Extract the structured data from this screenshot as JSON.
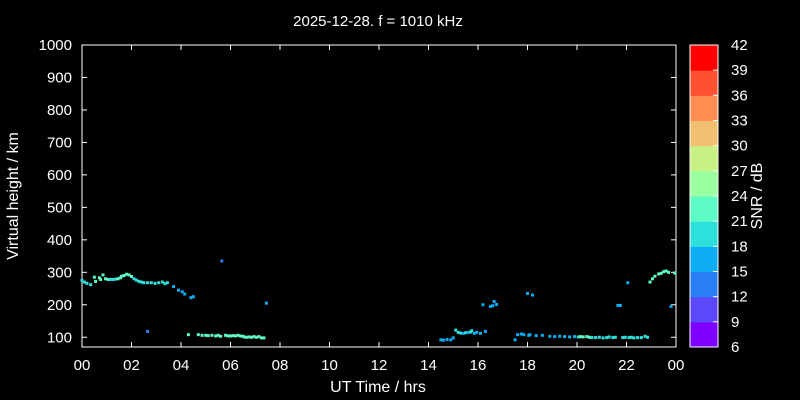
{
  "chart_data": {
    "type": "scatter",
    "title": "2025-12-28. f = 1010 kHz",
    "xlabel": "UT Time / hrs",
    "ylabel": "Virtual height / km",
    "xlim": [
      0,
      24
    ],
    "ylim": [
      70,
      1000
    ],
    "xticks": [
      "00",
      "02",
      "04",
      "06",
      "08",
      "10",
      "12",
      "14",
      "16",
      "18",
      "20",
      "22",
      "00"
    ],
    "yticks": [
      100,
      200,
      300,
      400,
      500,
      600,
      700,
      800,
      900,
      1000
    ],
    "grid": false,
    "colorbar": {
      "label": "SNR / dB",
      "ticks": [
        "6",
        "9",
        "12",
        "15",
        "18",
        "21",
        "24",
        "27",
        "30",
        "33",
        "36",
        "39",
        "42"
      ],
      "colors": [
        "#7f00ff",
        "#5a48f9",
        "#2c7ef6",
        "#0dadf2",
        "#2ee0dc",
        "#5efcc4",
        "#99ffa0",
        "#c8f082",
        "#f0c070",
        "#ff8c50",
        "#ff5030",
        "#ff0000"
      ]
    },
    "points": [
      [
        0.0,
        275,
        20
      ],
      [
        0.1,
        270,
        20
      ],
      [
        0.2,
        266,
        19
      ],
      [
        0.35,
        262,
        18
      ],
      [
        0.5,
        285,
        22
      ],
      [
        0.55,
        272,
        21
      ],
      [
        0.7,
        283,
        22
      ],
      [
        0.75,
        278,
        21
      ],
      [
        0.85,
        292,
        23
      ],
      [
        0.95,
        280,
        21
      ],
      [
        1.05,
        278,
        21
      ],
      [
        1.15,
        278,
        20
      ],
      [
        1.25,
        278,
        20
      ],
      [
        1.35,
        279,
        20
      ],
      [
        1.45,
        280,
        21
      ],
      [
        1.55,
        283,
        21
      ],
      [
        1.6,
        288,
        22
      ],
      [
        1.7,
        290,
        22
      ],
      [
        1.8,
        294,
        23
      ],
      [
        1.9,
        292,
        22
      ],
      [
        2.0,
        287,
        21
      ],
      [
        2.1,
        280,
        20
      ],
      [
        2.2,
        276,
        20
      ],
      [
        2.3,
        272,
        19
      ],
      [
        2.4,
        270,
        19
      ],
      [
        2.5,
        268,
        19
      ],
      [
        2.65,
        268,
        19
      ],
      [
        2.65,
        118,
        12
      ],
      [
        2.8,
        268,
        19
      ],
      [
        2.95,
        266,
        19
      ],
      [
        3.1,
        268,
        19
      ],
      [
        3.25,
        270,
        19
      ],
      [
        3.35,
        265,
        19
      ],
      [
        3.45,
        268,
        19
      ],
      [
        3.7,
        256,
        17
      ],
      [
        3.9,
        245,
        16
      ],
      [
        4.05,
        240,
        16
      ],
      [
        4.15,
        233,
        16
      ],
      [
        4.4,
        222,
        15
      ],
      [
        4.5,
        225,
        15
      ],
      [
        4.3,
        108,
        22
      ],
      [
        4.7,
        108,
        22
      ],
      [
        4.85,
        106,
        22
      ],
      [
        5.0,
        106,
        22
      ],
      [
        5.1,
        105,
        22
      ],
      [
        5.25,
        106,
        22
      ],
      [
        5.4,
        104,
        21
      ],
      [
        5.5,
        106,
        22
      ],
      [
        5.6,
        103,
        22
      ],
      [
        5.65,
        335,
        13
      ],
      [
        5.8,
        106,
        22
      ],
      [
        5.9,
        104,
        22
      ],
      [
        6.0,
        104,
        22
      ],
      [
        6.1,
        105,
        22
      ],
      [
        6.2,
        104,
        22
      ],
      [
        6.3,
        106,
        22
      ],
      [
        6.4,
        104,
        22
      ],
      [
        6.5,
        103,
        22
      ],
      [
        6.55,
        101,
        22
      ],
      [
        6.65,
        100,
        22
      ],
      [
        6.75,
        101,
        22
      ],
      [
        6.85,
        100,
        22
      ],
      [
        6.95,
        102,
        22
      ],
      [
        7.05,
        100,
        22
      ],
      [
        7.15,
        102,
        22
      ],
      [
        7.25,
        98,
        22
      ],
      [
        7.35,
        98,
        21
      ],
      [
        7.45,
        205,
        15
      ],
      [
        14.5,
        92,
        16
      ],
      [
        14.6,
        91,
        16
      ],
      [
        14.75,
        93,
        16
      ],
      [
        14.9,
        92,
        16
      ],
      [
        15.0,
        98,
        16
      ],
      [
        15.1,
        122,
        18
      ],
      [
        15.2,
        115,
        18
      ],
      [
        15.3,
        113,
        18
      ],
      [
        15.4,
        112,
        17
      ],
      [
        15.5,
        114,
        18
      ],
      [
        15.6,
        115,
        17
      ],
      [
        15.7,
        116,
        18
      ],
      [
        15.75,
        120,
        18
      ],
      [
        15.85,
        112,
        17
      ],
      [
        15.95,
        115,
        17
      ],
      [
        16.1,
        112,
        17
      ],
      [
        16.2,
        200,
        15
      ],
      [
        16.3,
        118,
        17
      ],
      [
        16.5,
        195,
        15
      ],
      [
        16.6,
        197,
        15
      ],
      [
        16.65,
        210,
        15
      ],
      [
        16.75,
        201,
        15
      ],
      [
        17.5,
        92,
        16
      ],
      [
        17.6,
        108,
        17
      ],
      [
        17.75,
        110,
        17
      ],
      [
        17.85,
        108,
        16
      ],
      [
        18.0,
        235,
        15
      ],
      [
        18.05,
        106,
        16
      ],
      [
        18.1,
        108,
        16
      ],
      [
        18.2,
        230,
        15
      ],
      [
        18.35,
        105,
        16
      ],
      [
        18.6,
        106,
        16
      ],
      [
        18.9,
        103,
        16
      ],
      [
        19.1,
        102,
        16
      ],
      [
        19.3,
        103,
        16
      ],
      [
        19.5,
        102,
        16
      ],
      [
        19.7,
        101,
        16
      ],
      [
        19.9,
        102,
        16
      ],
      [
        20.05,
        101,
        19
      ],
      [
        20.15,
        102,
        21
      ],
      [
        20.25,
        101,
        21
      ],
      [
        20.4,
        102,
        21
      ],
      [
        20.5,
        100,
        21
      ],
      [
        20.6,
        99,
        20
      ],
      [
        20.75,
        99,
        19
      ],
      [
        20.9,
        100,
        19
      ],
      [
        21.05,
        98,
        19
      ],
      [
        21.2,
        99,
        20
      ],
      [
        21.3,
        101,
        20
      ],
      [
        21.45,
        99,
        20
      ],
      [
        21.55,
        100,
        20
      ],
      [
        21.65,
        198,
        17
      ],
      [
        21.75,
        198,
        17
      ],
      [
        21.85,
        99,
        20
      ],
      [
        21.95,
        100,
        20
      ],
      [
        22.05,
        268,
        15
      ],
      [
        22.1,
        99,
        20
      ],
      [
        22.2,
        100,
        20
      ],
      [
        22.3,
        98,
        20
      ],
      [
        22.45,
        99,
        20
      ],
      [
        22.6,
        99,
        20
      ],
      [
        22.75,
        103,
        20
      ],
      [
        22.85,
        100,
        20
      ],
      [
        22.95,
        270,
        22
      ],
      [
        23.05,
        280,
        22
      ],
      [
        23.15,
        288,
        22
      ],
      [
        23.3,
        295,
        23
      ],
      [
        23.4,
        297,
        23
      ],
      [
        23.5,
        302,
        23
      ],
      [
        23.6,
        304,
        23
      ],
      [
        23.7,
        300,
        23
      ],
      [
        23.8,
        195,
        15
      ],
      [
        23.95,
        298,
        22
      ]
    ]
  }
}
